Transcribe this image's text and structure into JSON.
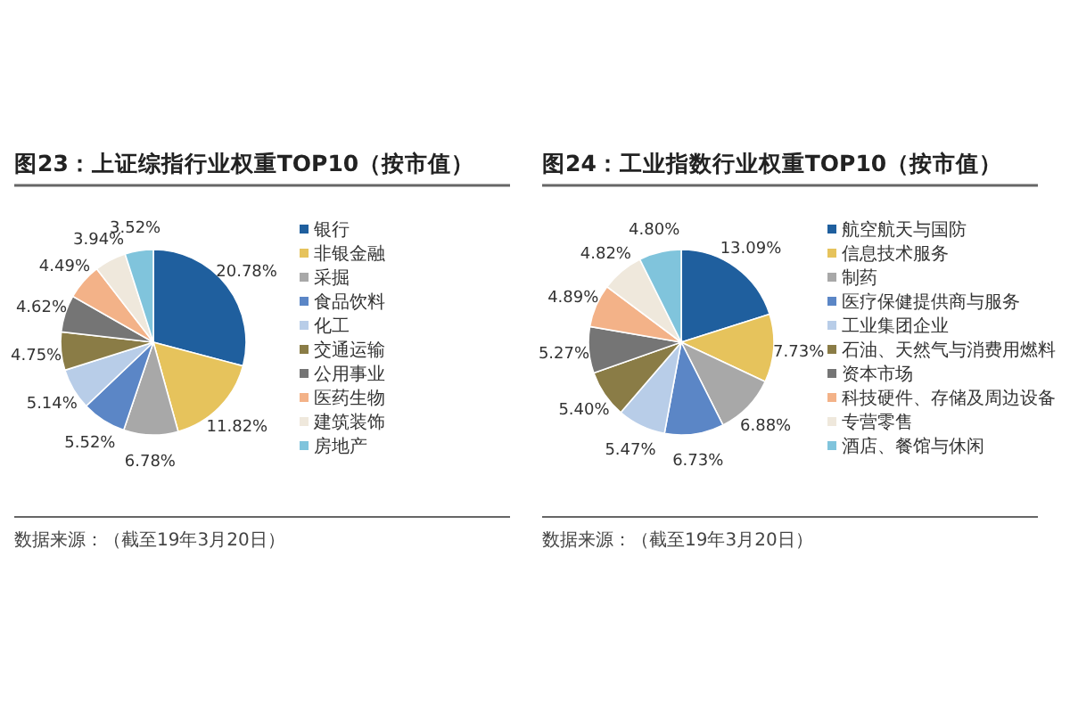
{
  "chart_data": [
    {
      "type": "pie",
      "title": "图23：上证综指行业权重TOP10（按市值）",
      "categories": [
        "银行",
        "非银金融",
        "采掘",
        "食品饮料",
        "化工",
        "交通运输",
        "公用事业",
        "医药生物",
        "建筑装饰",
        "房地产"
      ],
      "values": [
        20.78,
        11.82,
        6.78,
        5.52,
        5.14,
        4.75,
        4.62,
        4.49,
        3.94,
        3.52
      ],
      "value_labels": [
        "20.78%",
        "11.82%",
        "6.78%",
        "5.52%",
        "5.14%",
        "4.75%",
        "4.62%",
        "4.49%",
        "3.94%",
        "3.52%"
      ],
      "colors": [
        "#1f5f9e",
        "#e6c35c",
        "#a8a8a8",
        "#5b86c6",
        "#b8cde8",
        "#8a7c46",
        "#757575",
        "#f3b288",
        "#efe8dc",
        "#80c4dc"
      ],
      "legend": "right",
      "annotations": [
        "数据来源：（截至19年3月20日）"
      ]
    },
    {
      "type": "pie",
      "title": "图24：工业指数行业权重TOP10（按市值）",
      "categories": [
        "航空航天与国防",
        "信息技术服务",
        "制药",
        "医疗保健提供商与服务",
        "工业集团企业",
        "石油、天然气与消费用燃料",
        "资本市场",
        "科技硬件、存储及周边设备",
        "专营零售",
        "酒店、餐馆与休闲"
      ],
      "values": [
        13.09,
        7.73,
        6.88,
        6.73,
        5.47,
        5.4,
        5.27,
        4.89,
        4.82,
        4.8
      ],
      "value_labels": [
        "13.09%",
        "7.73%",
        "6.88%",
        "6.73%",
        "5.47%",
        "5.40%",
        "5.27%",
        "4.89%",
        "4.82%",
        "4.80%"
      ],
      "colors": [
        "#1f5f9e",
        "#e6c35c",
        "#a8a8a8",
        "#5b86c6",
        "#b8cde8",
        "#8a7c46",
        "#757575",
        "#f3b288",
        "#efe8dc",
        "#80c4dc"
      ],
      "legend": "right",
      "annotations": [
        "数据来源：（截至19年3月20日）"
      ]
    }
  ]
}
